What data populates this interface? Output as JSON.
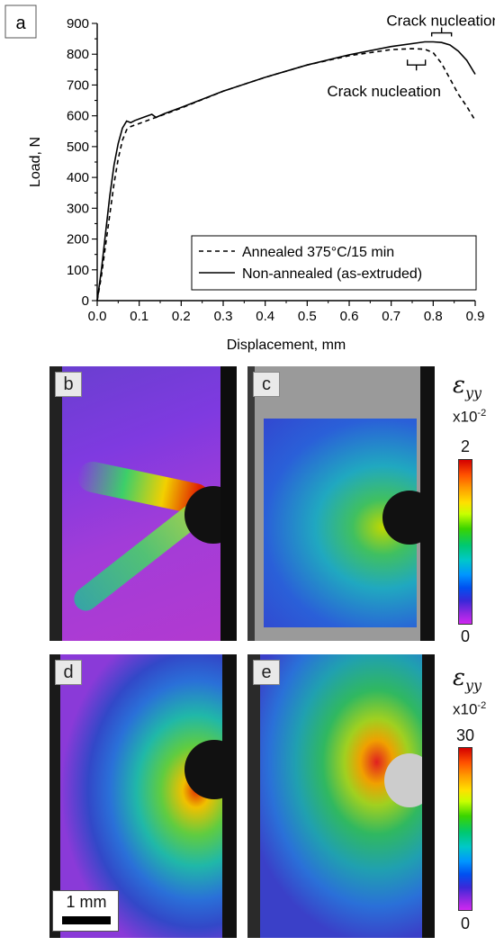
{
  "chart_data": {
    "type": "line",
    "panel_label": "a",
    "xlabel": "Displacement, mm",
    "ylabel": "Load, N",
    "xlim": [
      0,
      0.9
    ],
    "ylim": [
      0,
      900
    ],
    "xticks": [
      "0.0",
      "0.1",
      "0.2",
      "0.3",
      "0.4",
      "0.5",
      "0.6",
      "0.7",
      "0.8",
      "0.9"
    ],
    "yticks": [
      "0",
      "50",
      "100",
      "150",
      "200",
      "250",
      "300",
      "350",
      "400",
      "450",
      "500",
      "550",
      "600",
      "650",
      "700",
      "750",
      "800",
      "850",
      "900"
    ],
    "grid": false,
    "legend_position": "bottom-right",
    "series": [
      {
        "name": "Annealed 375°C/15 min",
        "style": "dashed",
        "x": [
          0,
          0.01,
          0.02,
          0.03,
          0.04,
          0.05,
          0.06,
          0.07,
          0.08,
          0.1,
          0.13,
          0.16,
          0.2,
          0.3,
          0.4,
          0.5,
          0.6,
          0.7,
          0.75,
          0.78,
          0.8,
          0.82,
          0.84,
          0.86,
          0.88,
          0.9
        ],
        "y": [
          0,
          80,
          180,
          280,
          380,
          460,
          520,
          555,
          565,
          575,
          590,
          605,
          625,
          680,
          725,
          765,
          795,
          815,
          818,
          816,
          805,
          770,
          720,
          670,
          630,
          585
        ]
      },
      {
        "name": "Non-annealed (as-extruded)",
        "style": "solid",
        "x": [
          0,
          0.01,
          0.02,
          0.03,
          0.04,
          0.05,
          0.06,
          0.07,
          0.08,
          0.09,
          0.11,
          0.13,
          0.14,
          0.16,
          0.2,
          0.3,
          0.4,
          0.5,
          0.6,
          0.7,
          0.78,
          0.8,
          0.82,
          0.84,
          0.86,
          0.88,
          0.9
        ],
        "y": [
          0,
          100,
          220,
          340,
          440,
          510,
          560,
          583,
          578,
          585,
          595,
          605,
          595,
          607,
          627,
          680,
          725,
          765,
          798,
          825,
          840,
          840,
          838,
          830,
          810,
          780,
          735
        ]
      }
    ],
    "annotations": [
      {
        "text": "Crack nucleation",
        "x": 0.82,
        "y": 840
      },
      {
        "text": "Crack nucleation",
        "x": 0.76,
        "y": 765
      }
    ]
  },
  "maps": {
    "panels": [
      "b",
      "c",
      "d",
      "e"
    ],
    "colorbar_top": {
      "symbol": "ε",
      "subscript": "yy",
      "multiplier": "x10",
      "exponent": "-2",
      "max": "2",
      "min": "0"
    },
    "colorbar_bottom": {
      "symbol": "ε",
      "subscript": "yy",
      "multiplier": "x10",
      "exponent": "-2",
      "max": "30",
      "min": "0"
    },
    "scale_bar": "1 mm"
  }
}
